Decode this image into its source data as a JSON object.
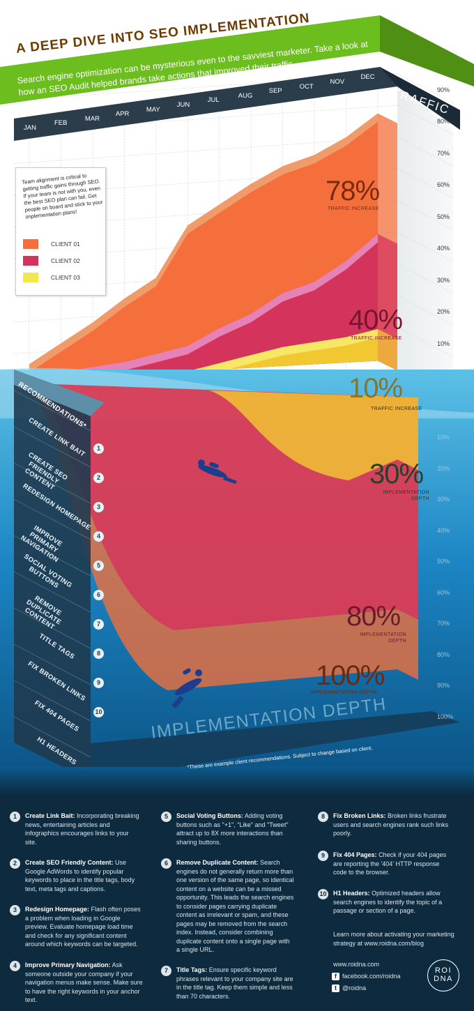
{
  "header": {
    "title": "A DEEP DIVE INTO SEO IMPLEMENTATION",
    "subtitle": "Search engine optimization can be mysterious even to the savviest marketer. Take a look at how an SEO Audit helped brands take actions that improved their traffic."
  },
  "colors": {
    "client_01": "#f46f3b",
    "client_02": "#d4345c",
    "client_03": "#f2c832",
    "banner_green": "#6cbd1e",
    "water_top": "#4fb4de",
    "water_bottom": "#0d5f9a",
    "dark_panel": "#1f3a4f"
  },
  "legend": {
    "note": "Team alignment is critical to getting traffic gains through SEO. If your team is not with you, even the best SEO plan can fail. Get people on board and stick to your implementation plans!",
    "items": [
      {
        "label": "CLIENT 01",
        "color": "#f46f3b"
      },
      {
        "label": "CLIENT 02",
        "color": "#d4345c"
      },
      {
        "label": "CLIENT 03",
        "color": "#f2c832"
      }
    ]
  },
  "callouts": {
    "c1_traffic": {
      "value": "78%",
      "label": "TRAFFIC INCREASE"
    },
    "c2_traffic": {
      "value": "40%",
      "label": "TRAFFIC INCREASE"
    },
    "c3_traffic": {
      "value": "10%",
      "label": "TRAFFIC INCREASE"
    },
    "c3_depth": {
      "value": "30%",
      "label": "IMPLEMENTATION DEPTH"
    },
    "c2_depth": {
      "value": "80%",
      "label": "IMPLEMENTATION DEPTH"
    },
    "c1_depth": {
      "value": "100%",
      "label": "IMPLEMENTATION DEPTH"
    }
  },
  "traffic_axis_label": "TRAFFIC",
  "recommendations_header": "RECOMMENDATIONS*",
  "implementation_title": "IMPLEMENTATION DEPTH",
  "footnote": "*These are example client recommendations.  Subject to change based on client.",
  "chart_data": {
    "type": "area",
    "title": "A DEEP DIVE INTO SEO IMPLEMENTATION",
    "xlabel": "",
    "ylabel": "TRAFFIC",
    "x": [
      "JAN",
      "FEB",
      "MAR",
      "APR",
      "MAY",
      "JUN",
      "JUL",
      "AUG",
      "SEP",
      "OCT",
      "NOV",
      "DEC"
    ],
    "ylim": [
      0,
      90
    ],
    "yticks": [
      "10%",
      "20%",
      "30%",
      "40%",
      "50%",
      "60%",
      "70%",
      "80%",
      "90%"
    ],
    "series": [
      {
        "name": "CLIENT 01",
        "values": [
          5,
          11,
          17,
          24,
          30,
          46,
          52,
          58,
          63,
          66,
          71,
          78
        ]
      },
      {
        "name": "CLIENT 02",
        "values": [
          1,
          2,
          3,
          4,
          6,
          8,
          13,
          17,
          23,
          26,
          32,
          40
        ]
      },
      {
        "name": "CLIENT 03",
        "values": [
          0,
          0,
          0,
          0,
          0,
          0,
          2,
          4,
          6,
          7,
          8,
          10
        ]
      }
    ],
    "implementation_depth": {
      "ylabel": "IMPLEMENTATION DEPTH",
      "yticks": [
        "10%",
        "20%",
        "30%",
        "40%",
        "50%",
        "60%",
        "70%",
        "80%",
        "90%",
        "100%"
      ],
      "recommendations": [
        {
          "num": "1",
          "label": "CREATE LINK BAIT"
        },
        {
          "num": "2",
          "label": "CREATE SEO FRIENDLY CONTENT"
        },
        {
          "num": "3",
          "label": "REDESIGN HOMEPAGE"
        },
        {
          "num": "4",
          "label": "IMPROVE PRIMARY NAVIGATION"
        },
        {
          "num": "5",
          "label": "SOCIAL VOTING BUTTONS"
        },
        {
          "num": "6",
          "label": "REMOVE DUPLICATE CONTENT"
        },
        {
          "num": "7",
          "label": "TITLE TAGS"
        },
        {
          "num": "8",
          "label": "FIX BROKEN LINKS"
        },
        {
          "num": "9",
          "label": "FIX 404 PAGES"
        },
        {
          "num": "10",
          "label": "H1 HEADERS"
        }
      ],
      "series": [
        {
          "name": "CLIENT 01",
          "depth": 100
        },
        {
          "name": "CLIENT 02",
          "depth": 80
        },
        {
          "name": "CLIENT 03",
          "depth": 30
        }
      ]
    }
  },
  "definitions": [
    {
      "num": "1",
      "title": "Create Link Bait:",
      "text": "Incorporating breaking news, entertaining articles and infographics encourages links to your site."
    },
    {
      "num": "2",
      "title": "Create SEO Friendly Content:",
      "text": "Use Google AdWords to identify popular keywords to place in the title tags, body text, meta tags and captions."
    },
    {
      "num": "3",
      "title": "Redesign Homepage:",
      "text": "Flash often poses a problem when loading in Google preview. Evaluate homepage load time and check for any significant content around which keywords can be targeted."
    },
    {
      "num": "4",
      "title": "Improve Primary Navigation:",
      "text": "Ask someone outside your company if your navigation menus make sense. Make sure to have the right keywords in your anchor text."
    },
    {
      "num": "5",
      "title": "Social Voting Buttons:",
      "text": "Adding voting buttons such as \"+1\", \"Like\" and \"Tweet\" attract up to 8X more interactions than sharing buttons."
    },
    {
      "num": "6",
      "title": "Remove Duplicate Content:",
      "text": "Search engines do not generally return more than one version of the same page, so identical content on a website can be a missed opportunity. This leads the search engines to consider pages carrying duplicate content as irrelevant or spam, and these pages may be removed from the search index. Instead, consider combining duplicate content onto a single page with a single URL."
    },
    {
      "num": "7",
      "title": "Title Tags:",
      "text": "Ensure specific keyword phrases relevant to your company site are in the title tag. Keep them simple and less than 70 characters."
    },
    {
      "num": "8",
      "title": "Fix Broken Links:",
      "text": "Broken links frustrate users and search engines rank such links poorly."
    },
    {
      "num": "9",
      "title": "Fix 404 Pages:",
      "text": "Check if your 404 pages are reporting the '404' HTTP response code to the browser."
    },
    {
      "num": "10",
      "title": "H1 Headers:",
      "text": "Optimized headers allow search engines to identify the topic of a passage or section of a page."
    }
  ],
  "contact": {
    "learn_more": "Learn more about activating your marketing strategy at www.roidna.com/blog",
    "website": "www.roidna.com",
    "facebook": "facebook.com/roidna",
    "twitter": "@roidna",
    "logo_line1": "ROI",
    "logo_line2": "DNA",
    "facebook_icon": "facebook-icon",
    "twitter_icon": "twitter-icon"
  }
}
